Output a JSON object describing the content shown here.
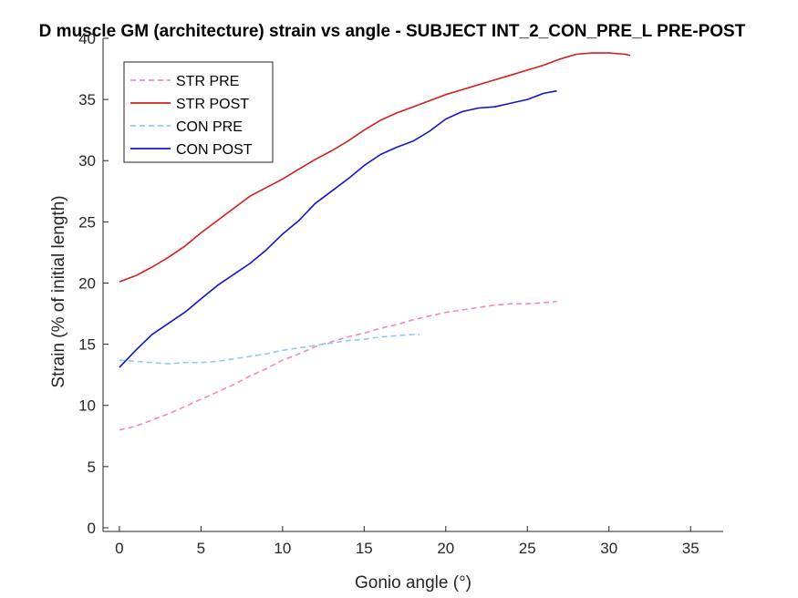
{
  "chart_data": {
    "type": "line",
    "title": "D muscle GM (architecture) strain vs angle - SUBJECT INT_2_CON_PRE_L PRE-POST",
    "xlabel": "Gonio angle (°)",
    "ylabel": "Strain (% of initial length)",
    "xlim": [
      -1,
      37
    ],
    "ylim": [
      -0.3,
      40
    ],
    "xticks": [
      0,
      5,
      10,
      15,
      20,
      25,
      30,
      35
    ],
    "yticks": [
      0,
      5,
      10,
      15,
      20,
      25,
      30,
      35,
      40
    ],
    "grid": false,
    "legend_position": "top-left",
    "series": [
      {
        "name": "STR PRE",
        "color": "#F28AC2",
        "dash": "dashed",
        "x": [
          0,
          1,
          2,
          3,
          4,
          5,
          6,
          7,
          8,
          9,
          10,
          11,
          12,
          13,
          14,
          15,
          16,
          17,
          18,
          19,
          20,
          21,
          22,
          23,
          24,
          25,
          26,
          26.8
        ],
        "y": [
          8.0,
          8.3,
          8.8,
          9.3,
          9.9,
          10.5,
          11.1,
          11.7,
          12.4,
          13.0,
          13.7,
          14.2,
          14.8,
          15.2,
          15.6,
          15.9,
          16.3,
          16.6,
          17.0,
          17.3,
          17.6,
          17.8,
          18.0,
          18.2,
          18.3,
          18.3,
          18.4,
          18.5
        ]
      },
      {
        "name": "STR POST",
        "color": "#D41E1E",
        "dash": "solid",
        "x": [
          0,
          1,
          2,
          3,
          4,
          5,
          6,
          7,
          8,
          9,
          10,
          11,
          12,
          13,
          14,
          15,
          16,
          17,
          18,
          19,
          20,
          21,
          22,
          23,
          24,
          25,
          26,
          27,
          28,
          29,
          30,
          31,
          31.3
        ],
        "y": [
          20.1,
          20.6,
          21.3,
          22.1,
          23.0,
          24.1,
          25.1,
          26.1,
          27.1,
          27.8,
          28.5,
          29.3,
          30.1,
          30.8,
          31.6,
          32.5,
          33.3,
          33.9,
          34.4,
          34.9,
          35.4,
          35.8,
          36.2,
          36.6,
          37.0,
          37.4,
          37.8,
          38.3,
          38.7,
          38.8,
          38.8,
          38.7,
          38.6
        ]
      },
      {
        "name": "CON PRE",
        "color": "#8EC9F0",
        "dash": "dashed",
        "x": [
          0,
          1,
          2,
          3,
          4,
          5,
          6,
          7,
          8,
          9,
          10,
          11,
          12,
          13,
          14,
          15,
          16,
          17,
          18,
          18.4
        ],
        "y": [
          13.7,
          13.6,
          13.5,
          13.4,
          13.5,
          13.5,
          13.6,
          13.8,
          14.0,
          14.2,
          14.5,
          14.7,
          14.9,
          15.1,
          15.3,
          15.4,
          15.6,
          15.7,
          15.8,
          15.8
        ]
      },
      {
        "name": "CON POST",
        "color": "#1414C8",
        "dash": "solid",
        "x": [
          0,
          1,
          2,
          3,
          4,
          5,
          6,
          7,
          8,
          9,
          10,
          11,
          12,
          13,
          14,
          15,
          16,
          17,
          18,
          19,
          20,
          21,
          22,
          23,
          24,
          25,
          26,
          26.8
        ],
        "y": [
          13.1,
          14.5,
          15.8,
          16.7,
          17.6,
          18.7,
          19.8,
          20.7,
          21.6,
          22.7,
          24.0,
          25.1,
          26.5,
          27.5,
          28.5,
          29.6,
          30.5,
          31.1,
          31.6,
          32.4,
          33.4,
          34.0,
          34.3,
          34.4,
          34.7,
          35.0,
          35.5,
          35.7
        ]
      }
    ]
  }
}
